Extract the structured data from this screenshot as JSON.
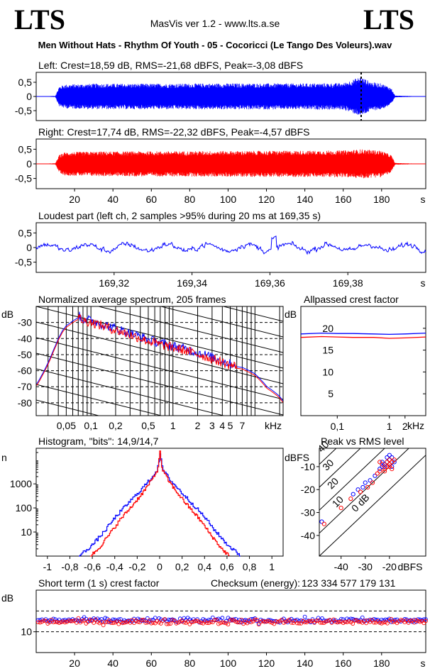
{
  "header": {
    "logo_left": "LTS",
    "logo_right": "LTS",
    "app_title": "MasVis ver 1.2 - www.lts.a.se",
    "track_title": "Men Without Hats - Rhythm Of Youth - 05 - Cocoricci (Le Tango Des Voleurs).wav"
  },
  "chart_data": [
    {
      "id": "left",
      "type": "area",
      "title": "Left: Crest=18,59 dB, RMS=-21,68 dBFS, Peak=-3,08 dBFS",
      "yticks": [
        "0,5",
        "0",
        "-0,5"
      ],
      "ylim": [
        -0.85,
        0.85
      ],
      "xlim": [
        0,
        203
      ],
      "color": "#0000ff",
      "marker_x": 169.35,
      "envelope": {
        "x": [
          0,
          10,
          12,
          15,
          30,
          60,
          100,
          140,
          160,
          169,
          175,
          180,
          185,
          187,
          203
        ],
        "amp": [
          0,
          0.02,
          0.35,
          0.42,
          0.45,
          0.45,
          0.46,
          0.46,
          0.47,
          0.69,
          0.5,
          0.46,
          0.3,
          0.03,
          0
        ]
      }
    },
    {
      "id": "right",
      "type": "area",
      "title": "Right: Crest=17,74 dB, RMS=-22,32 dBFS, Peak=-4,57 dBFS",
      "yticks": [
        "0,5",
        "0",
        "-0,5"
      ],
      "ylim": [
        -0.85,
        0.85
      ],
      "xlim": [
        0,
        203
      ],
      "color": "#ff0000",
      "xticks": [
        "20",
        "40",
        "60",
        "80",
        "100",
        "120",
        "140",
        "160",
        "180",
        "s"
      ],
      "xtick_values": [
        20,
        40,
        60,
        80,
        100,
        120,
        140,
        160,
        180
      ],
      "envelope": {
        "x": [
          0,
          10,
          12,
          15,
          30,
          60,
          100,
          140,
          160,
          170,
          180,
          185,
          187,
          203
        ],
        "amp": [
          0,
          0.02,
          0.3,
          0.4,
          0.42,
          0.43,
          0.44,
          0.45,
          0.46,
          0.5,
          0.45,
          0.3,
          0.03,
          0
        ]
      }
    },
    {
      "id": "loudest",
      "type": "line",
      "title": "Loudest part (left  ch, 2 samples >95% during 20 ms at 169,35 s)",
      "yticks": [
        "0,5",
        "0",
        "-0,5"
      ],
      "ylim": [
        -0.85,
        0.85
      ],
      "xlim": [
        169.3,
        169.4
      ],
      "color": "#0000ff",
      "xticks": [
        "169,32",
        "169,34",
        "169,36",
        "169,38",
        "s"
      ],
      "xtick_values": [
        169.32,
        169.34,
        169.36,
        169.38
      ]
    },
    {
      "id": "spectrum",
      "type": "line",
      "title": "Normalized average spectrum, 205 frames",
      "ylabel": "dB",
      "yticks": [
        "-30",
        "-40",
        "-50",
        "-60",
        "-70",
        "-80"
      ],
      "ytick_values": [
        -30,
        -40,
        -50,
        -60,
        -70,
        -80
      ],
      "ylim": [
        -88,
        -20
      ],
      "xlabel": "kHz",
      "xticks": [
        "0,05",
        "0,1",
        "0,2",
        "0,5",
        "1",
        "2",
        "3",
        "4",
        "5",
        "7"
      ],
      "xtick_values": [
        0.05,
        0.1,
        0.2,
        0.5,
        1,
        2,
        3,
        4,
        5,
        7
      ],
      "xlim": [
        0.0215,
        22.05
      ],
      "log_x": true,
      "series": [
        {
          "color": "#0000ff",
          "freq": [
            0.022,
            0.025,
            0.03,
            0.035,
            0.04,
            0.045,
            0.05,
            0.06,
            0.07,
            0.08,
            0.1,
            0.15,
            0.2,
            0.3,
            0.5,
            0.7,
            1,
            1.5,
            2,
            3,
            4,
            5,
            7,
            10,
            14,
            20,
            22
          ],
          "db": [
            -68,
            -63,
            -55,
            -47,
            -40,
            -35,
            -32,
            -29,
            -27,
            -29,
            -30,
            -33,
            -35,
            -38,
            -42,
            -44,
            -46,
            -48,
            -50,
            -53,
            -55,
            -57,
            -58,
            -62,
            -70,
            -76,
            -79
          ]
        },
        {
          "color": "#ff0000",
          "freq": [
            0.022,
            0.025,
            0.03,
            0.035,
            0.04,
            0.045,
            0.05,
            0.06,
            0.07,
            0.08,
            0.1,
            0.15,
            0.2,
            0.3,
            0.5,
            0.7,
            1,
            1.5,
            2,
            3,
            4,
            5,
            7,
            10,
            14,
            20,
            22
          ],
          "db": [
            -69,
            -64,
            -56,
            -48,
            -41,
            -36,
            -33,
            -30,
            -28,
            -30,
            -31,
            -34,
            -36,
            -39,
            -43,
            -45,
            -47,
            -49,
            -51,
            -54,
            -56,
            -58,
            -59,
            -63,
            -71,
            -77,
            -80
          ]
        }
      ]
    },
    {
      "id": "allpass",
      "type": "line",
      "title": "Allpassed crest factor",
      "ylabel": "dB",
      "yticks": [
        "20",
        "15",
        "10",
        "5"
      ],
      "ytick_values": [
        20,
        15,
        10,
        5
      ],
      "ylim": [
        0,
        25
      ],
      "xlabel": "kHz",
      "xticks": [
        "0,1",
        "1",
        "2"
      ],
      "xtick_values": [
        0.1,
        1,
        2
      ],
      "xlim": [
        0.02,
        5
      ],
      "log_x": true,
      "series": [
        {
          "color": "#0000ff",
          "freq": [
            0.02,
            0.05,
            0.1,
            0.2,
            0.5,
            1,
            2,
            5
          ],
          "db": [
            18.7,
            18.9,
            18.8,
            18.8,
            18.7,
            18.6,
            18.7,
            18.9
          ]
        },
        {
          "color": "#ff0000",
          "freq": [
            0.02,
            0.05,
            0.1,
            0.2,
            0.5,
            1,
            2,
            5
          ],
          "db": [
            17.9,
            18.1,
            18.0,
            17.9,
            17.9,
            17.7,
            17.8,
            18.0
          ]
        }
      ]
    },
    {
      "id": "histogram",
      "type": "line",
      "title": "Histogram, \"bits\": 14,9/14,7",
      "ylabel": "n",
      "yticks": [
        "1000",
        "100",
        "10"
      ],
      "ytick_values": [
        1000,
        100,
        10
      ],
      "log_y": true,
      "ylim": [
        1,
        30000
      ],
      "xticks": [
        "-1",
        "-0,8",
        "-0,6",
        "-0,4",
        "-0,2",
        "0",
        "0,2",
        "0,4",
        "0,6",
        "0,8",
        "1"
      ],
      "xtick_values": [
        -1,
        -0.8,
        -0.6,
        -0.4,
        -0.2,
        0,
        0.2,
        0.4,
        0.6,
        0.8,
        1
      ],
      "xlim": [
        -1.1,
        1.1
      ],
      "series": [
        {
          "color": "#0000ff",
          "x": [
            -0.72,
            -0.6,
            -0.5,
            -0.4,
            -0.3,
            -0.2,
            -0.1,
            -0.03,
            0,
            0.03,
            0.1,
            0.2,
            0.3,
            0.4,
            0.5,
            0.6,
            0.72
          ],
          "n": [
            1,
            3,
            10,
            40,
            130,
            400,
            1300,
            3500,
            15000,
            3500,
            1300,
            400,
            130,
            40,
            10,
            3,
            1
          ]
        },
        {
          "color": "#ff0000",
          "x": [
            -0.62,
            -0.55,
            -0.45,
            -0.35,
            -0.25,
            -0.15,
            -0.07,
            -0.02,
            0,
            0.02,
            0.07,
            0.15,
            0.25,
            0.35,
            0.45,
            0.55,
            0.62
          ],
          "n": [
            1,
            2,
            8,
            35,
            120,
            450,
            1500,
            4000,
            20000,
            4000,
            1500,
            450,
            120,
            35,
            8,
            2,
            1
          ]
        }
      ]
    },
    {
      "id": "peakrms",
      "type": "scatter",
      "title": "Peak vs RMS level",
      "ylabel": "dBFS",
      "yticks": [
        "-10",
        "-20",
        "-30",
        "-40"
      ],
      "ytick_values": [
        -10,
        -20,
        -30,
        -40
      ],
      "ylim": [
        -49,
        -2
      ],
      "xlabel": "dBFS",
      "xticks": [
        "-40",
        "-30",
        "-20"
      ],
      "xtick_values": [
        -40,
        -30,
        -20
      ],
      "xlim": [
        -49,
        -5
      ],
      "diagonals": [
        {
          "label": "40",
          "offset": 40
        },
        {
          "label": "30",
          "offset": 30
        },
        {
          "label": "20",
          "offset": 20
        },
        {
          "label": "10",
          "offset": 10
        },
        {
          "label": "0 dB",
          "offset": 0
        }
      ],
      "series": [
        {
          "color": "#0000ff",
          "points": [
            [
              -48,
              -34
            ],
            [
              -35,
              -22
            ],
            [
              -33,
              -20
            ],
            [
              -31,
              -19
            ],
            [
              -30,
              -17
            ],
            [
              -28,
              -16
            ],
            [
              -26,
              -14
            ],
            [
              -24,
              -11
            ],
            [
              -23,
              -10
            ],
            [
              -22,
              -9
            ],
            [
              -21,
              -8
            ],
            [
              -20,
              -7
            ],
            [
              -20,
              -9
            ],
            [
              -19,
              -6
            ],
            [
              -21,
              -6
            ],
            [
              -18,
              -8
            ],
            [
              -22,
              -10
            ],
            [
              -20,
              -5
            ],
            [
              -19,
              -10
            ],
            [
              -23,
              -8
            ]
          ]
        },
        {
          "color": "#ff0000",
          "points": [
            [
              -47,
              -35
            ],
            [
              -40,
              -28
            ],
            [
              -36,
              -24
            ],
            [
              -32,
              -21
            ],
            [
              -29,
              -19
            ],
            [
              -27,
              -17
            ],
            [
              -25,
              -13
            ],
            [
              -24,
              -12
            ],
            [
              -22,
              -11
            ],
            [
              -21,
              -10
            ],
            [
              -20,
              -9
            ],
            [
              -19,
              -8
            ],
            [
              -20,
              -7
            ],
            [
              -21,
              -8
            ],
            [
              -18,
              -7
            ],
            [
              -22,
              -12
            ],
            [
              -19,
              -11
            ],
            [
              -23,
              -9
            ],
            [
              -24,
              -8
            ],
            [
              -20,
              -10
            ]
          ]
        }
      ]
    },
    {
      "id": "shortterm",
      "type": "scatter",
      "title": "Short term (1 s) crest factor",
      "checksum_label": "Checksum (energy):",
      "checksum_value": "123 334 577 179 131",
      "ylabel": "dB",
      "yticks": [
        "10"
      ],
      "ytick_values": [
        10
      ],
      "ylim": [
        0,
        30
      ],
      "xticks": [
        "20",
        "40",
        "60",
        "80",
        "100",
        "120",
        "140",
        "160",
        "180",
        "s"
      ],
      "xtick_values": [
        20,
        40,
        60,
        80,
        100,
        120,
        140,
        160,
        180
      ],
      "xlim": [
        0,
        203
      ],
      "dashed_y": [
        20,
        10
      ],
      "series": [
        {
          "color": "#0000ff",
          "mean": 15.5,
          "spread": 1.3
        },
        {
          "color": "#ff0000",
          "mean": 14.8,
          "spread": 1.3
        }
      ]
    }
  ]
}
